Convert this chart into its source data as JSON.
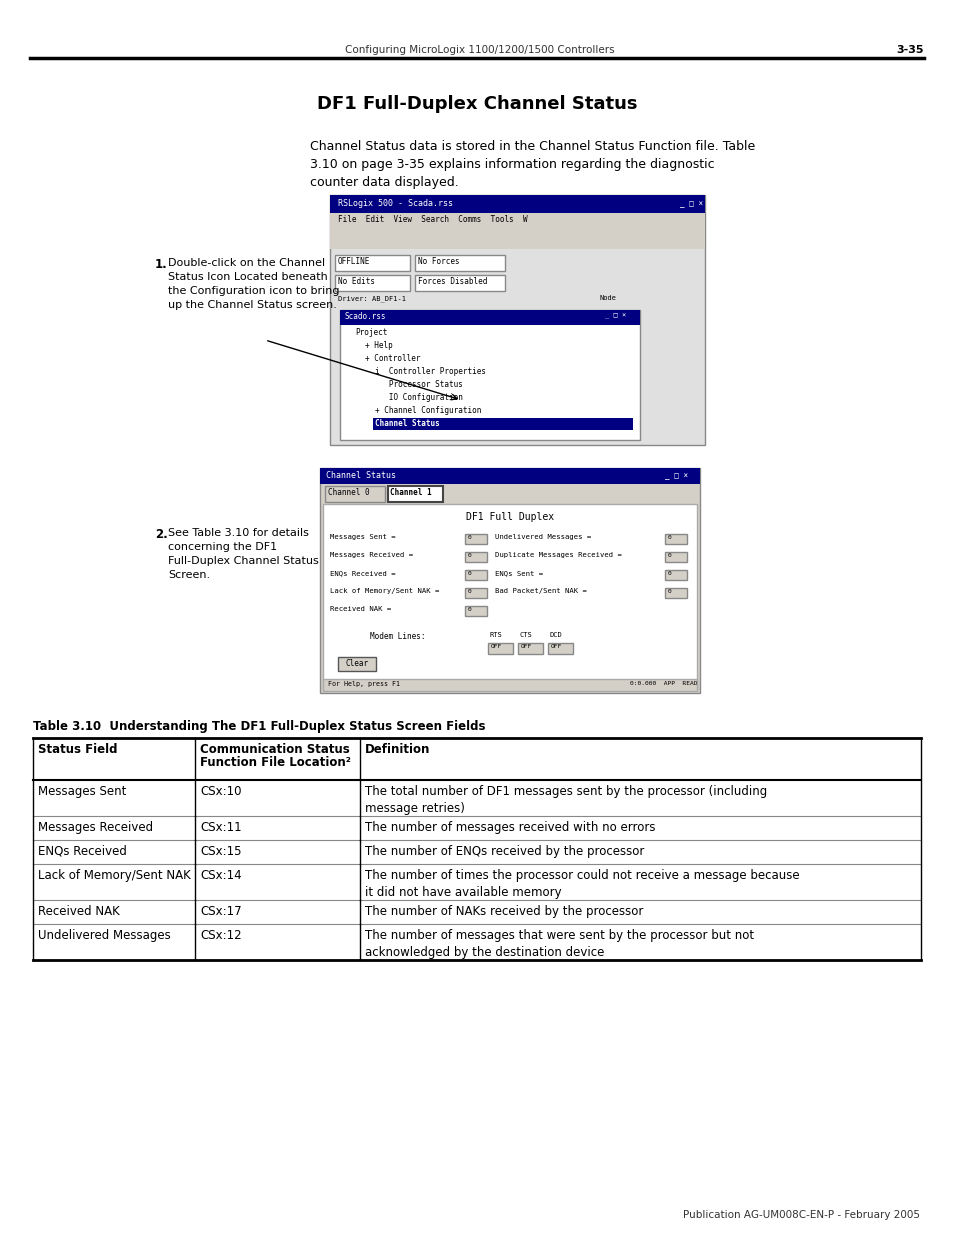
{
  "page_header_text": "Configuring MicroLogix 1100/1200/1500 Controllers",
  "page_number": "3-35",
  "title": "DF1 Full-Duplex Channel Status",
  "intro_text": "Channel Status data is stored in the Channel Status Function file. Table\n3.10 on page 3-35 explains information regarding the diagnostic\ncounter data displayed.",
  "step1_label": "1.",
  "step1_text": "Double-click on the Channel\nStatus Icon Located beneath\nthe Configuration icon to bring\nup the Channel Status screen.",
  "step2_label": "2.",
  "step2_text": "See Table 3.10 for details\nconcerning the DF1\nFull-Duplex Channel Status\nScreen.",
  "table_title": "Table 3.10  Understanding The DF1 Full-Duplex Status Screen Fields",
  "table_headers": [
    "Status Field",
    "Communication Status\nFunction File Location²",
    "Definition"
  ],
  "table_col_header_line2": [
    "",
    "Function File Location²",
    ""
  ],
  "table_rows": [
    [
      "Messages Sent",
      "CSx:10",
      "The total number of DF1 messages sent by the processor (including\nmessage retries)"
    ],
    [
      "Messages Received",
      "CSx:11",
      "The number of messages received with no errors"
    ],
    [
      "ENQs Received",
      "CSx:15",
      "The number of ENQs received by the processor"
    ],
    [
      "Lack of Memory/Sent NAK",
      "CSx:14",
      "The number of times the processor could not receive a message because\nit did not have available memory"
    ],
    [
      "Received NAK",
      "CSx:17",
      "The number of NAKs received by the processor"
    ],
    [
      "Undelivered Messages",
      "CSx:12",
      "The number of messages that were sent by the processor but not\nacknowledged by the destination device"
    ]
  ],
  "footer_text": "Publication AG-UM008C-EN-P - February 2005",
  "bg_color": "#ffffff",
  "text_color": "#000000",
  "header_line_color": "#000000",
  "table_border_color": "#000000"
}
